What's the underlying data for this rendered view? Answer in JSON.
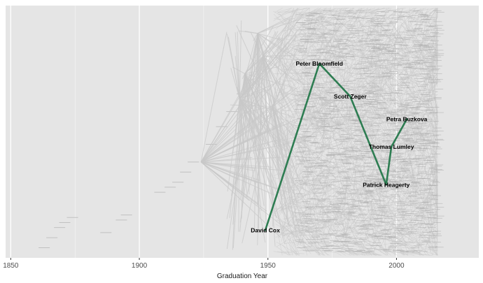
{
  "chart_data": {
    "type": "line",
    "title": "",
    "xlabel": "Graduation Year",
    "ylabel": "",
    "xlim": [
      1848,
      2032
    ],
    "ylim": [
      0,
      100
    ],
    "x_ticks": [
      1850,
      1900,
      1950,
      2000
    ],
    "x_tick_labels": [
      "1850",
      "1900",
      "1950",
      "2000"
    ],
    "grid": true,
    "background_color": "#e5e5e5",
    "gridline_color": "#ffffff",
    "network_color": "#c8c8c8",
    "highlight_color": "#2e7d52",
    "highlight_path": [
      {
        "name": "David Cox",
        "year": 1949,
        "y": 11
      },
      {
        "name": "Peter Bloomfield",
        "year": 1970,
        "y": 77
      },
      {
        "name": "Scott Zeger",
        "year": 1982,
        "y": 64
      },
      {
        "name": "Patrick Heagerty",
        "year": 1996,
        "y": 29
      },
      {
        "name": "Thomas Lumley",
        "year": 1998,
        "y": 44
      },
      {
        "name": "Petra Buzkova",
        "year": 2004,
        "y": 55
      }
    ]
  }
}
